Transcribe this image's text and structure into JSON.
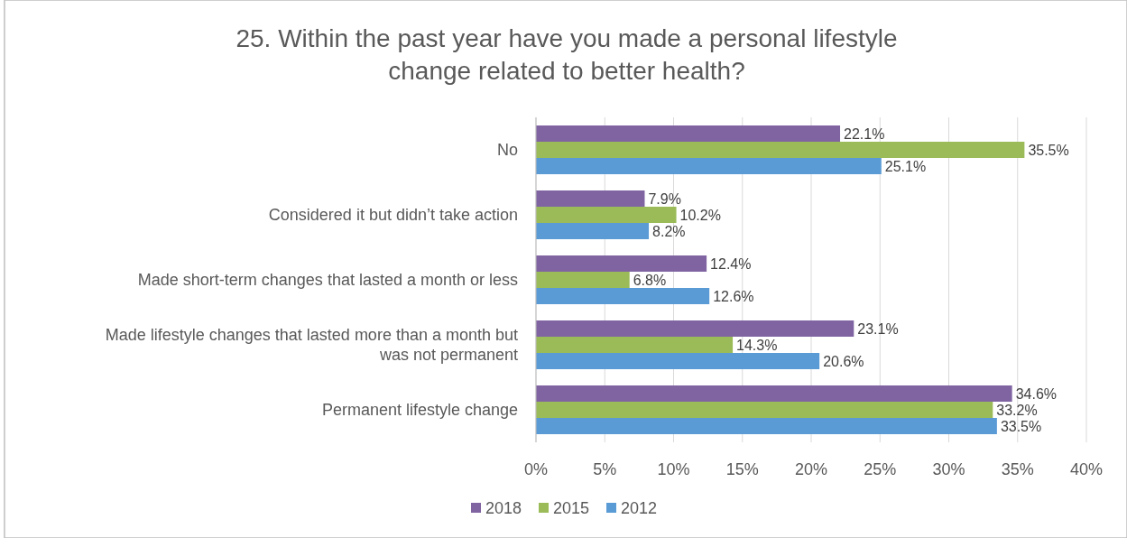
{
  "chart_data": {
    "type": "bar",
    "orientation": "horizontal",
    "title": "25. Within the past year have you made a personal lifestyle change related to better health?",
    "categories": [
      "No",
      "Considered it but didn’t take action",
      "Made short-term changes that lasted a month or less",
      "Made lifestyle changes that lasted more than a month but was not permanent",
      "Permanent lifestyle change"
    ],
    "series": [
      {
        "name": "2018",
        "color": "#8064a2",
        "values": [
          22.1,
          7.9,
          12.4,
          23.1,
          34.6
        ],
        "value_labels": [
          "22.1%",
          "7.9%",
          "12.4%",
          "23.1%",
          "34.6%"
        ]
      },
      {
        "name": "2015",
        "color": "#9bbb59",
        "values": [
          35.5,
          10.2,
          6.8,
          14.3,
          33.2
        ],
        "value_labels": [
          "35.5%",
          "10.2%",
          "6.8%",
          "14.3%",
          "33.2%"
        ]
      },
      {
        "name": "2012",
        "color": "#5b9bd5",
        "values": [
          25.1,
          8.2,
          12.6,
          20.6,
          33.5
        ],
        "value_labels": [
          "25.1%",
          "8.2%",
          "12.6%",
          "20.6%",
          "33.5%"
        ]
      }
    ],
    "xlim": [
      0,
      40
    ],
    "xticks": [
      {
        "value": 0,
        "label": "0%"
      },
      {
        "value": 5,
        "label": "5%"
      },
      {
        "value": 10,
        "label": "10%"
      },
      {
        "value": 15,
        "label": "15%"
      },
      {
        "value": 20,
        "label": "20%"
      },
      {
        "value": 25,
        "label": "25%"
      },
      {
        "value": 30,
        "label": "30%"
      },
      {
        "value": 35,
        "label": "35%"
      },
      {
        "value": 40,
        "label": "40%"
      }
    ],
    "grid": "x",
    "legend": "bottom"
  }
}
